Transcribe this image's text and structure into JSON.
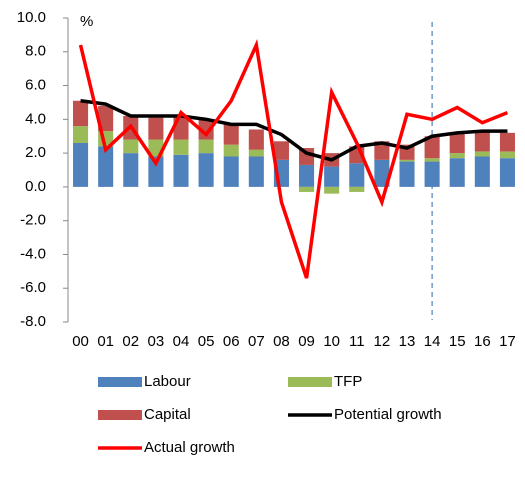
{
  "chart_data": {
    "type": "bar",
    "stacked": true,
    "y_unit_label": "%",
    "categories": [
      "00",
      "01",
      "02",
      "03",
      "04",
      "05",
      "06",
      "07",
      "08",
      "09",
      "10",
      "11",
      "12",
      "13",
      "14",
      "15",
      "16",
      "17"
    ],
    "ylim": [
      -8,
      10
    ],
    "yticks": [
      {
        "value": -8,
        "label": "-8.0"
      },
      {
        "value": -6,
        "label": "-6.0"
      },
      {
        "value": -4,
        "label": "-4.0"
      },
      {
        "value": -2,
        "label": "-2.0"
      },
      {
        "value": 0,
        "label": "0.0"
      },
      {
        "value": 2,
        "label": "2.0"
      },
      {
        "value": 4,
        "label": "4.0"
      },
      {
        "value": 6,
        "label": "6.0"
      },
      {
        "value": 8,
        "label": "8.0"
      },
      {
        "value": 10,
        "label": "10.0"
      }
    ],
    "series": [
      {
        "name": "Labour",
        "type": "bar",
        "color": "#4f81bd",
        "values": [
          2.6,
          2.4,
          2.0,
          1.8,
          1.9,
          2.0,
          1.8,
          1.8,
          1.6,
          1.3,
          1.2,
          1.4,
          1.6,
          1.5,
          1.5,
          1.7,
          1.8,
          1.7
        ]
      },
      {
        "name": "TFP",
        "type": "bar",
        "color": "#9bbb59",
        "values": [
          1.0,
          0.9,
          0.8,
          1.0,
          0.9,
          0.8,
          0.7,
          0.4,
          0.0,
          -0.3,
          -0.4,
          -0.3,
          0.0,
          0.1,
          0.2,
          0.3,
          0.3,
          0.4
        ]
      },
      {
        "name": "Capital",
        "type": "bar",
        "color": "#c0504d",
        "values": [
          1.5,
          1.5,
          1.4,
          1.3,
          1.4,
          1.2,
          1.2,
          1.2,
          1.1,
          1.0,
          0.8,
          1.0,
          1.1,
          0.9,
          1.3,
          1.2,
          1.2,
          1.1
        ]
      },
      {
        "name": "Potential growth",
        "type": "line",
        "color": "#000000",
        "values": [
          5.1,
          4.9,
          4.2,
          4.2,
          4.2,
          4.0,
          3.7,
          3.7,
          3.1,
          2.0,
          1.6,
          2.4,
          2.6,
          2.3,
          3.0,
          3.2,
          3.3,
          3.3
        ]
      },
      {
        "name": "Actual growth",
        "type": "line",
        "color": "#ff0000",
        "values": [
          8.4,
          2.2,
          3.6,
          1.4,
          4.4,
          3.1,
          5.1,
          8.4,
          -0.9,
          -5.4,
          5.6,
          2.6,
          -0.9,
          4.3,
          4.0,
          4.7,
          3.8,
          4.4
        ]
      }
    ]
  }
}
